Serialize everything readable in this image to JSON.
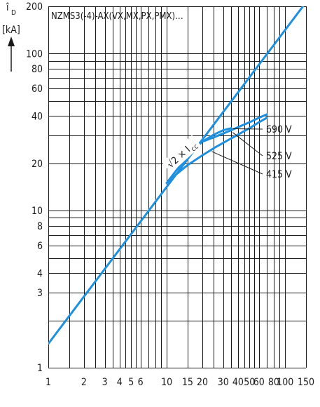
{
  "chart_data": {
    "type": "line",
    "title": "NZMS3(-4)-AX(VX,MX,PX,PMX)…",
    "xlabel": "",
    "ylabel_symbol": "î",
    "ylabel_subscript": "D",
    "ylabel_unit": "[kA]",
    "x_scale": "log",
    "y_scale": "log",
    "xlim": [
      1,
      150
    ],
    "ylim": [
      1,
      200
    ],
    "x_tick_labels": [
      {
        "value": 1,
        "label": "1"
      },
      {
        "value": 2,
        "label": "2"
      },
      {
        "value": 3,
        "label": "3"
      },
      {
        "value": 4,
        "label": "4"
      },
      {
        "value": 5,
        "label": "5"
      },
      {
        "value": 6,
        "label": "6"
      },
      {
        "value": 10,
        "label": "10"
      },
      {
        "value": 15,
        "label": "15"
      },
      {
        "value": 20,
        "label": "20"
      },
      {
        "value": 30,
        "label": "30"
      },
      {
        "value": 40,
        "label": "40"
      },
      {
        "value": 50,
        "label": "50"
      },
      {
        "value": 60,
        "label": "60"
      },
      {
        "value": 80,
        "label": "80"
      },
      {
        "value": 100,
        "label": "100"
      },
      {
        "value": 150,
        "label": "150"
      }
    ],
    "y_tick_labels": [
      {
        "value": 1,
        "label": "1"
      },
      {
        "value": 3,
        "label": "3"
      },
      {
        "value": 4,
        "label": "4"
      },
      {
        "value": 6,
        "label": "6"
      },
      {
        "value": 8,
        "label": "8"
      },
      {
        "value": 10,
        "label": "10"
      },
      {
        "value": 20,
        "label": "20"
      },
      {
        "value": 40,
        "label": "40"
      },
      {
        "value": 60,
        "label": "60"
      },
      {
        "value": 80,
        "label": "80"
      },
      {
        "value": 100,
        "label": "100"
      },
      {
        "value": 200,
        "label": "200"
      }
    ],
    "x_gridlines": [
      1,
      1.5,
      2,
      2.5,
      3,
      3.5,
      4,
      4.5,
      5,
      5.5,
      6,
      7,
      8,
      9,
      10,
      15,
      20,
      25,
      30,
      35,
      40,
      45,
      50,
      55,
      60,
      70,
      80,
      90,
      100,
      150
    ],
    "y_gridlines": [
      1,
      2,
      3,
      4,
      5,
      6,
      7,
      8,
      9,
      10,
      20,
      30,
      40,
      50,
      60,
      70,
      80,
      90,
      100,
      200
    ],
    "series": [
      {
        "name": "√2 × I_cc",
        "label_main": "√2 × I",
        "label_sub": "cc",
        "x": [
          1,
          150
        ],
        "y": [
          1.42,
          212
        ]
      },
      {
        "name": "690 V",
        "label": "690 V",
        "x": [
          10,
          12,
          15,
          18,
          20,
          25,
          30,
          35
        ],
        "y": [
          15,
          18,
          22,
          25.5,
          27.5,
          30.5,
          32.5,
          33.5
        ]
      },
      {
        "name": "525 V",
        "label": "525 V",
        "x": [
          20,
          25,
          30,
          35,
          40,
          50,
          60,
          70
        ],
        "y": [
          27.5,
          29.3,
          31,
          32.5,
          34,
          36.5,
          39,
          41
        ]
      },
      {
        "name": "415 V",
        "label": "415 V",
        "x": [
          10,
          12,
          15,
          20,
          25,
          30,
          40,
          50,
          60,
          70
        ],
        "y": [
          15,
          17,
          19.5,
          22.5,
          25,
          27,
          30.5,
          33.5,
          36.5,
          39
        ]
      }
    ],
    "annotations": [
      {
        "series": "690 V",
        "text": "690 V",
        "target": [
          36,
          33.2
        ]
      },
      {
        "series": "525 V",
        "text": "525 V",
        "target": [
          36,
          31.5
        ]
      },
      {
        "series": "415 V",
        "text": "415 V",
        "target": [
          24,
          23.8
        ]
      }
    ],
    "grid": true,
    "legend": "none",
    "colors": {
      "series": "#1f8fe0",
      "grid": "#1a1a1a"
    }
  }
}
